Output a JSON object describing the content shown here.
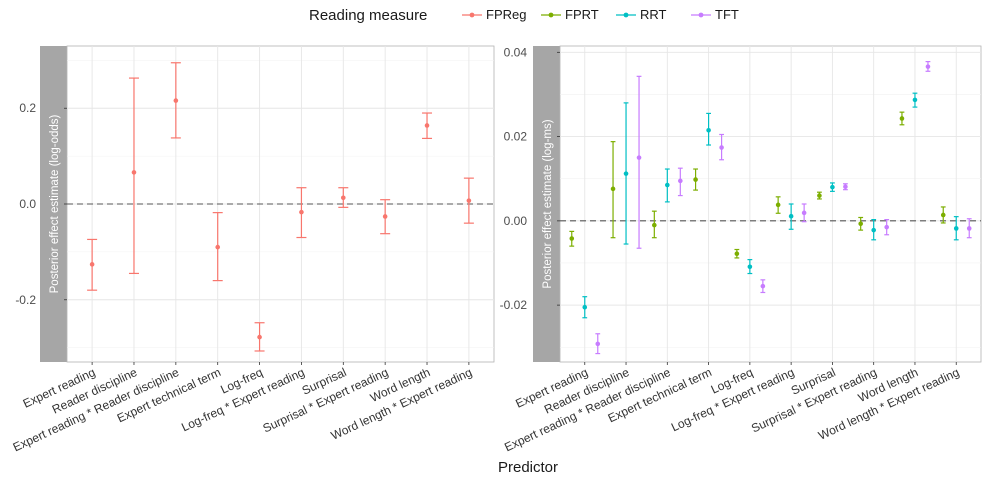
{
  "legend": {
    "title": "Reading measure",
    "entries": [
      {
        "name": "FPReg",
        "color": "#F8766D"
      },
      {
        "name": "FPRT",
        "color": "#7CAE00"
      },
      {
        "name": "RRT",
        "color": "#00BFC4"
      },
      {
        "name": "TFT",
        "color": "#C77CFF"
      }
    ]
  },
  "x_axis_title": "Predictor",
  "chart_data": [
    {
      "type": "scatter",
      "error_bars": true,
      "ylabel": "Posterior effect estimate (log-odds)",
      "categories": [
        "Expert reading",
        "Reader discipline",
        "Expert reading * Reader discipline",
        "Expert technical term",
        "Log-freq",
        "Log-freq * Expert reading",
        "Surprisal",
        "Surprisal * Expert reading",
        "Word length",
        "Word length * Expert reading"
      ],
      "ylim": [
        -0.33,
        0.33
      ],
      "yticks": [
        -0.2,
        0.0,
        0.2
      ],
      "ytick_labels": [
        "-0.2",
        "0.0",
        "0.2"
      ],
      "reference_line": 0,
      "grid": true,
      "series": [
        {
          "name": "FPReg",
          "color": "#F8766D",
          "estimate": [
            -0.126,
            0.066,
            0.216,
            -0.09,
            -0.278,
            -0.017,
            0.013,
            -0.026,
            0.164,
            0.007
          ],
          "lower": [
            -0.18,
            -0.145,
            0.138,
            -0.16,
            -0.307,
            -0.07,
            -0.007,
            -0.062,
            0.137,
            -0.04
          ],
          "upper": [
            -0.074,
            0.263,
            0.295,
            -0.018,
            -0.248,
            0.034,
            0.034,
            0.009,
            0.19,
            0.054
          ]
        }
      ]
    },
    {
      "type": "scatter",
      "error_bars": true,
      "ylabel": "Posterior effect estimate (log-ms)",
      "categories": [
        "Expert reading",
        "Reader discipline",
        "Expert reading * Reader discipline",
        "Expert technical term",
        "Log-freq",
        "Log-freq * Expert reading",
        "Surprisal",
        "Surprisal * Expert reading",
        "Word length",
        "Word length * Expert reading"
      ],
      "ylim": [
        -0.0335,
        0.0415
      ],
      "yticks": [
        -0.02,
        0.0,
        0.02,
        0.04
      ],
      "ytick_labels": [
        "-0.02",
        "0.00",
        "0.02",
        "0.04"
      ],
      "reference_line": 0,
      "grid": true,
      "series": [
        {
          "name": "FPRT",
          "color": "#7CAE00",
          "estimate": [
            -0.0042,
            0.0076,
            -0.001,
            0.0098,
            -0.0078,
            0.0038,
            0.006,
            -0.0007,
            0.0243,
            0.0014
          ],
          "lower": [
            -0.006,
            -0.004,
            -0.004,
            0.0073,
            -0.0088,
            0.0018,
            0.0052,
            -0.0022,
            0.0228,
            -0.0005
          ],
          "upper": [
            -0.0025,
            0.0188,
            0.0023,
            0.0123,
            -0.0068,
            0.0057,
            0.0068,
            0.0008,
            0.0258,
            0.0033
          ]
        },
        {
          "name": "RRT",
          "color": "#00BFC4",
          "estimate": [
            -0.0205,
            0.0112,
            0.0085,
            0.0215,
            -0.0109,
            0.0011,
            0.008,
            -0.0022,
            0.0287,
            -0.0018
          ],
          "lower": [
            -0.023,
            -0.0055,
            0.0045,
            0.018,
            -0.0125,
            -0.002,
            0.007,
            -0.0045,
            0.027,
            -0.0045
          ],
          "upper": [
            -0.018,
            0.028,
            0.0123,
            0.0255,
            -0.0092,
            0.004,
            0.009,
            0.0003,
            0.0303,
            0.001
          ]
        },
        {
          "name": "TFT",
          "color": "#C77CFF",
          "estimate": [
            -0.0292,
            0.015,
            0.0095,
            0.0174,
            -0.0155,
            0.0019,
            0.0081,
            -0.0015,
            0.0366,
            -0.0018
          ],
          "lower": [
            -0.0315,
            -0.0065,
            0.006,
            0.0145,
            -0.017,
            -0.0002,
            0.0074,
            -0.0033,
            0.0355,
            -0.004
          ],
          "upper": [
            -0.0268,
            0.0343,
            0.0125,
            0.0205,
            -0.014,
            0.004,
            0.0088,
            0.0003,
            0.0378,
            0.0005
          ]
        }
      ]
    }
  ]
}
